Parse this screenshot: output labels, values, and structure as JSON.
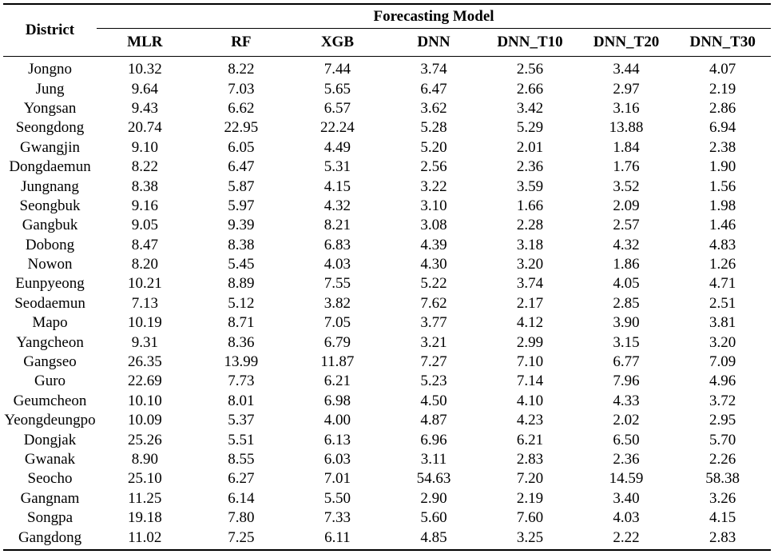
{
  "table": {
    "district_header": "District",
    "group_header": "Forecasting Model",
    "model_headers": [
      "MLR",
      "RF",
      "XGB",
      "DNN",
      "DNN_T10",
      "DNN_T20",
      "DNN_T30"
    ],
    "rows": [
      {
        "district": "Jongno",
        "values": [
          "10.32",
          "8.22",
          "7.44",
          "3.74",
          "2.56",
          "3.44",
          "4.07"
        ]
      },
      {
        "district": "Jung",
        "values": [
          "9.64",
          "7.03",
          "5.65",
          "6.47",
          "2.66",
          "2.97",
          "2.19"
        ]
      },
      {
        "district": "Yongsan",
        "values": [
          "9.43",
          "6.62",
          "6.57",
          "3.62",
          "3.42",
          "3.16",
          "2.86"
        ]
      },
      {
        "district": "Seongdong",
        "values": [
          "20.74",
          "22.95",
          "22.24",
          "5.28",
          "5.29",
          "13.88",
          "6.94"
        ]
      },
      {
        "district": "Gwangjin",
        "values": [
          "9.10",
          "6.05",
          "4.49",
          "5.20",
          "2.01",
          "1.84",
          "2.38"
        ]
      },
      {
        "district": "Dongdaemun",
        "values": [
          "8.22",
          "6.47",
          "5.31",
          "2.56",
          "2.36",
          "1.76",
          "1.90"
        ]
      },
      {
        "district": "Jungnang",
        "values": [
          "8.38",
          "5.87",
          "4.15",
          "3.22",
          "3.59",
          "3.52",
          "1.56"
        ]
      },
      {
        "district": "Seongbuk",
        "values": [
          "9.16",
          "5.97",
          "4.32",
          "3.10",
          "1.66",
          "2.09",
          "1.98"
        ]
      },
      {
        "district": "Gangbuk",
        "values": [
          "9.05",
          "9.39",
          "8.21",
          "3.08",
          "2.28",
          "2.57",
          "1.46"
        ]
      },
      {
        "district": "Dobong",
        "values": [
          "8.47",
          "8.38",
          "6.83",
          "4.39",
          "3.18",
          "4.32",
          "4.83"
        ]
      },
      {
        "district": "Nowon",
        "values": [
          "8.20",
          "5.45",
          "4.03",
          "4.30",
          "3.20",
          "1.86",
          "1.26"
        ]
      },
      {
        "district": "Eunpyeong",
        "values": [
          "10.21",
          "8.89",
          "7.55",
          "5.22",
          "3.74",
          "4.05",
          "4.71"
        ]
      },
      {
        "district": "Seodaemun",
        "values": [
          "7.13",
          "5.12",
          "3.82",
          "7.62",
          "2.17",
          "2.85",
          "2.51"
        ]
      },
      {
        "district": "Mapo",
        "values": [
          "10.19",
          "8.71",
          "7.05",
          "3.77",
          "4.12",
          "3.90",
          "3.81"
        ]
      },
      {
        "district": "Yangcheon",
        "values": [
          "9.31",
          "8.36",
          "6.79",
          "3.21",
          "2.99",
          "3.15",
          "3.20"
        ]
      },
      {
        "district": "Gangseo",
        "values": [
          "26.35",
          "13.99",
          "11.87",
          "7.27",
          "7.10",
          "6.77",
          "7.09"
        ]
      },
      {
        "district": "Guro",
        "values": [
          "22.69",
          "7.73",
          "6.21",
          "5.23",
          "7.14",
          "7.96",
          "4.96"
        ]
      },
      {
        "district": "Geumcheon",
        "values": [
          "10.10",
          "8.01",
          "6.98",
          "4.50",
          "4.10",
          "4.33",
          "3.72"
        ]
      },
      {
        "district": "Yeongdeungpo",
        "values": [
          "10.09",
          "5.37",
          "4.00",
          "4.87",
          "4.23",
          "2.02",
          "2.95"
        ]
      },
      {
        "district": "Dongjak",
        "values": [
          "25.26",
          "5.51",
          "6.13",
          "6.96",
          "6.21",
          "6.50",
          "5.70"
        ]
      },
      {
        "district": "Gwanak",
        "values": [
          "8.90",
          "8.55",
          "6.03",
          "3.11",
          "2.83",
          "2.36",
          "2.26"
        ]
      },
      {
        "district": "Seocho",
        "values": [
          "25.10",
          "6.27",
          "7.01",
          "54.63",
          "7.20",
          "14.59",
          "58.38"
        ]
      },
      {
        "district": "Gangnam",
        "values": [
          "11.25",
          "6.14",
          "5.50",
          "2.90",
          "2.19",
          "3.40",
          "3.26"
        ]
      },
      {
        "district": "Songpa",
        "values": [
          "19.18",
          "7.80",
          "7.33",
          "5.60",
          "7.60",
          "4.03",
          "4.15"
        ]
      },
      {
        "district": "Gangdong",
        "values": [
          "11.02",
          "7.25",
          "6.11",
          "4.85",
          "3.25",
          "2.22",
          "2.83"
        ]
      }
    ]
  }
}
